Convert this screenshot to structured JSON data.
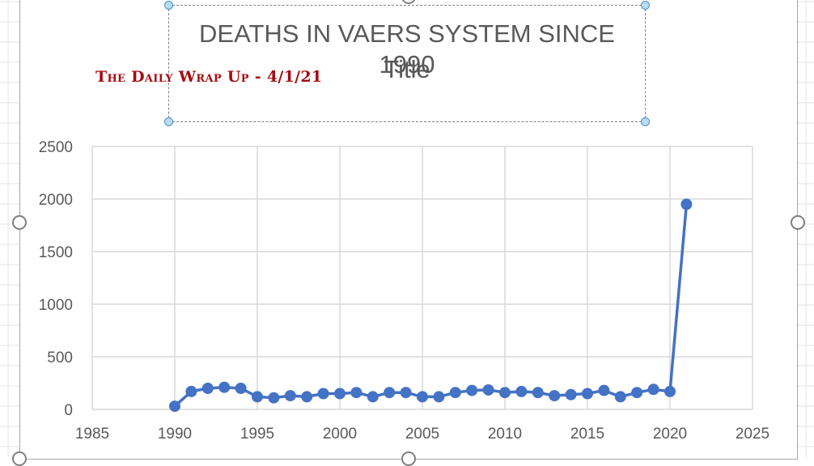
{
  "chart_data": {
    "type": "line",
    "title": "DEATHS IN VAERS SYSTEM SINCE 1990",
    "subtitle": "Title",
    "annotation": "The Daily Wrap Up - 4/1/21",
    "xlabel": "",
    "ylabel": "",
    "xlim": [
      1985,
      2025
    ],
    "ylim": [
      0,
      2500
    ],
    "x_ticks": [
      1985,
      1990,
      1995,
      2000,
      2005,
      2010,
      2015,
      2020,
      2025
    ],
    "y_ticks": [
      0,
      500,
      1000,
      1500,
      2000,
      2500
    ],
    "grid": true,
    "legend": "none",
    "series": [
      {
        "color": "#4472c4",
        "x": [
          1990,
          1991,
          1992,
          1993,
          1994,
          1995,
          1996,
          1997,
          1998,
          1999,
          2000,
          2001,
          2002,
          2003,
          2004,
          2005,
          2006,
          2007,
          2008,
          2009,
          2010,
          2011,
          2012,
          2013,
          2014,
          2015,
          2016,
          2017,
          2018,
          2019,
          2020,
          2021
        ],
        "y": [
          30,
          170,
          200,
          210,
          200,
          120,
          110,
          130,
          120,
          150,
          150,
          160,
          120,
          160,
          160,
          120,
          120,
          160,
          180,
          185,
          160,
          170,
          160,
          130,
          140,
          150,
          180,
          120,
          160,
          190,
          170,
          1950
        ]
      }
    ]
  },
  "colors": {
    "gridline": "#d9d9d9",
    "axis_text": "#595959",
    "watermark": "#a50d12"
  }
}
